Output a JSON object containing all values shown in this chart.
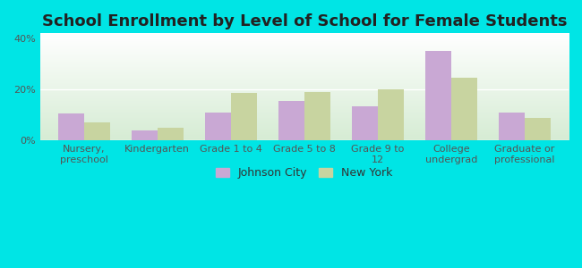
{
  "title": "School Enrollment by Level of School for Female Students",
  "categories": [
    "Nursery,\npreschool",
    "Kindergarten",
    "Grade 1 to 4",
    "Grade 5 to 8",
    "Grade 9 to\n12",
    "College\nundergrad",
    "Graduate or\nprofessional"
  ],
  "johnson_city": [
    10.5,
    4.0,
    11.0,
    15.5,
    13.5,
    35.0,
    11.0
  ],
  "new_york": [
    7.0,
    5.0,
    18.5,
    19.0,
    20.0,
    24.5,
    9.0
  ],
  "johnson_city_color": "#c9a8d4",
  "new_york_color": "#c8d4a0",
  "background_color": "#00e5e5",
  "ylim": [
    0,
    42
  ],
  "yticks": [
    0,
    20,
    40
  ],
  "ytick_labels": [
    "0%",
    "20%",
    "40%"
  ],
  "bar_width": 0.35,
  "legend_labels": [
    "Johnson City",
    "New York"
  ],
  "title_fontsize": 13,
  "tick_fontsize": 8,
  "legend_fontsize": 9
}
